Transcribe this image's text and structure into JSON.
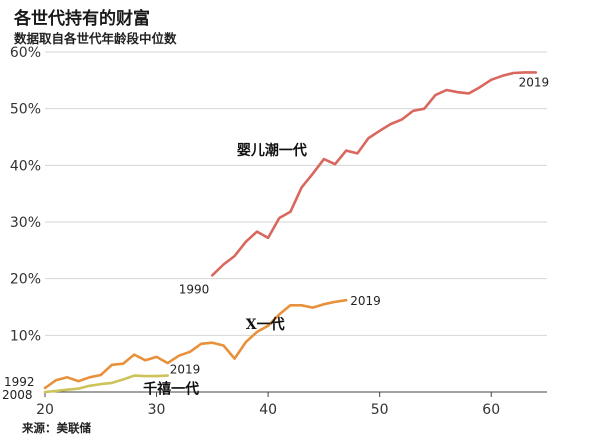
{
  "header": {
    "title": "各世代持有的财富",
    "subtitle": "数据取自各世代年龄段中位数"
  },
  "footer": {
    "source": "来源：美联储"
  },
  "chart_data": {
    "type": "line",
    "xlim": [
      20,
      65
    ],
    "ylim": [
      0,
      60
    ],
    "x_ticks": [
      20,
      30,
      40,
      50,
      60
    ],
    "y_ticks": [
      10,
      20,
      30,
      40,
      50,
      60
    ],
    "y_tick_labels": [
      "10%",
      "20%",
      "30%",
      "40%",
      "50%",
      "60%"
    ],
    "grid": "horizontal",
    "series": [
      {
        "name": "婴儿潮一代",
        "color": "#d9675e",
        "start_label": "1990",
        "end_label": "2019",
        "x": [
          35,
          36,
          37,
          38,
          39,
          40,
          41,
          42,
          43,
          44,
          45,
          46,
          47,
          48,
          49,
          50,
          51,
          52,
          53,
          54,
          55,
          56,
          57,
          58,
          59,
          60,
          61,
          62,
          63,
          64
        ],
        "y": [
          20.6,
          22.5,
          24.0,
          26.5,
          28.3,
          27.2,
          30.7,
          31.8,
          36.1,
          38.5,
          41.1,
          40.2,
          42.6,
          42.1,
          44.8,
          46.1,
          47.3,
          48.1,
          49.6,
          50.0,
          52.4,
          53.3,
          52.9,
          52.7,
          53.8,
          55.1,
          55.8,
          56.3,
          56.4,
          56.4
        ]
      },
      {
        "name": "X一代",
        "color": "#e8913a",
        "start_label": "1992",
        "end_label": "2019",
        "x": [
          20,
          21,
          22,
          23,
          24,
          25,
          26,
          27,
          28,
          29,
          30,
          31,
          32,
          33,
          34,
          35,
          36,
          37,
          38,
          39,
          40,
          41,
          42,
          43,
          44,
          45,
          46,
          47
        ],
        "y": [
          0.7,
          2.1,
          2.6,
          1.9,
          2.6,
          3.0,
          4.8,
          5.0,
          6.6,
          5.6,
          6.2,
          5.1,
          6.4,
          7.1,
          8.5,
          8.7,
          8.2,
          5.9,
          8.8,
          10.6,
          11.7,
          13.7,
          15.3,
          15.3,
          14.9,
          15.5,
          15.9,
          16.2
        ]
      },
      {
        "name": "千禧一代",
        "color": "#ccc35a",
        "start_label": "2008",
        "end_label": "2019",
        "x": [
          20,
          21,
          22,
          23,
          24,
          25,
          26,
          27,
          28,
          29,
          30,
          31
        ],
        "y": [
          0.0,
          0.2,
          0.4,
          0.6,
          1.1,
          1.4,
          1.6,
          2.2,
          2.9,
          2.8,
          2.8,
          2.9
        ]
      }
    ]
  }
}
